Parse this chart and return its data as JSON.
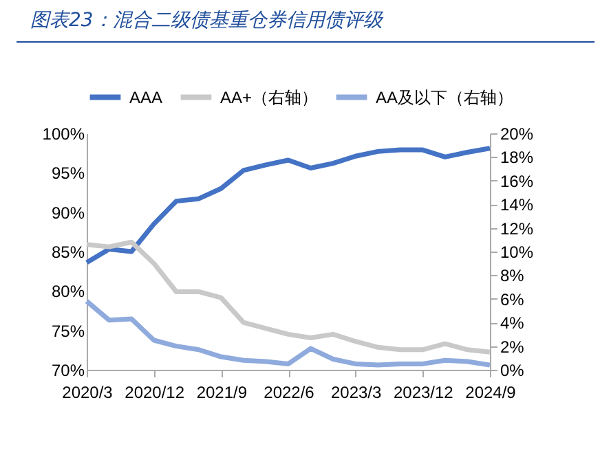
{
  "chart_data": {
    "type": "line",
    "title": "图表23：混合二级债基重仓券信用债评级",
    "categories": [
      "2020/3",
      null,
      null,
      "2020/12",
      null,
      null,
      "2021/9",
      null,
      null,
      "2022/6",
      null,
      null,
      "2023/3",
      null,
      null,
      "2023/12",
      null,
      null,
      "2024/9"
    ],
    "series": [
      {
        "name": "AAA",
        "color": "#4472c4",
        "values": [
          83.6,
          85.3,
          85.0,
          88.5,
          91.4,
          91.7,
          93.0,
          95.3,
          96.0,
          96.6,
          95.6,
          96.2,
          97.1,
          97.7,
          97.9,
          97.9,
          97.0,
          97.6,
          98.1
        ]
      },
      {
        "name": "AA+（右轴）",
        "color": "#c9c9c9",
        "axis": "y2",
        "values": [
          10.6,
          10.4,
          10.8,
          9.0,
          6.6,
          6.6,
          6.1,
          4.0,
          3.5,
          3.0,
          2.7,
          3.0,
          2.4,
          1.9,
          1.7,
          1.7,
          2.2,
          1.7,
          1.5
        ]
      },
      {
        "name": "AA及以下（右轴）",
        "color": "#8faadc",
        "axis": "y2",
        "values": [
          5.8,
          4.2,
          4.3,
          2.5,
          2.0,
          1.7,
          1.1,
          0.8,
          0.7,
          0.5,
          1.8,
          0.9,
          0.5,
          0.4,
          0.5,
          0.5,
          0.8,
          0.7,
          0.4
        ]
      }
    ],
    "ylim": [
      70,
      100
    ],
    "yticks": [
      {
        "value": 70,
        "label": "70%"
      },
      {
        "value": 75,
        "label": "75%"
      },
      {
        "value": 80,
        "label": "80%"
      },
      {
        "value": 85,
        "label": "85%"
      },
      {
        "value": 90,
        "label": "90%"
      },
      {
        "value": 95,
        "label": "95%"
      },
      {
        "value": 100,
        "label": "100%"
      }
    ],
    "y2lim": [
      0,
      20
    ],
    "y2ticks": [
      {
        "value": 0,
        "label": "0%"
      },
      {
        "value": 2,
        "label": "2%"
      },
      {
        "value": 4,
        "label": "4%"
      },
      {
        "value": 6,
        "label": "6%"
      },
      {
        "value": 8,
        "label": "8%"
      },
      {
        "value": 10,
        "label": "10%"
      },
      {
        "value": 12,
        "label": "12%"
      },
      {
        "value": 14,
        "label": "14%"
      },
      {
        "value": 16,
        "label": "16%"
      },
      {
        "value": 18,
        "label": "18%"
      },
      {
        "value": 20,
        "label": "20%"
      }
    ],
    "legend": "top",
    "grid": false
  }
}
